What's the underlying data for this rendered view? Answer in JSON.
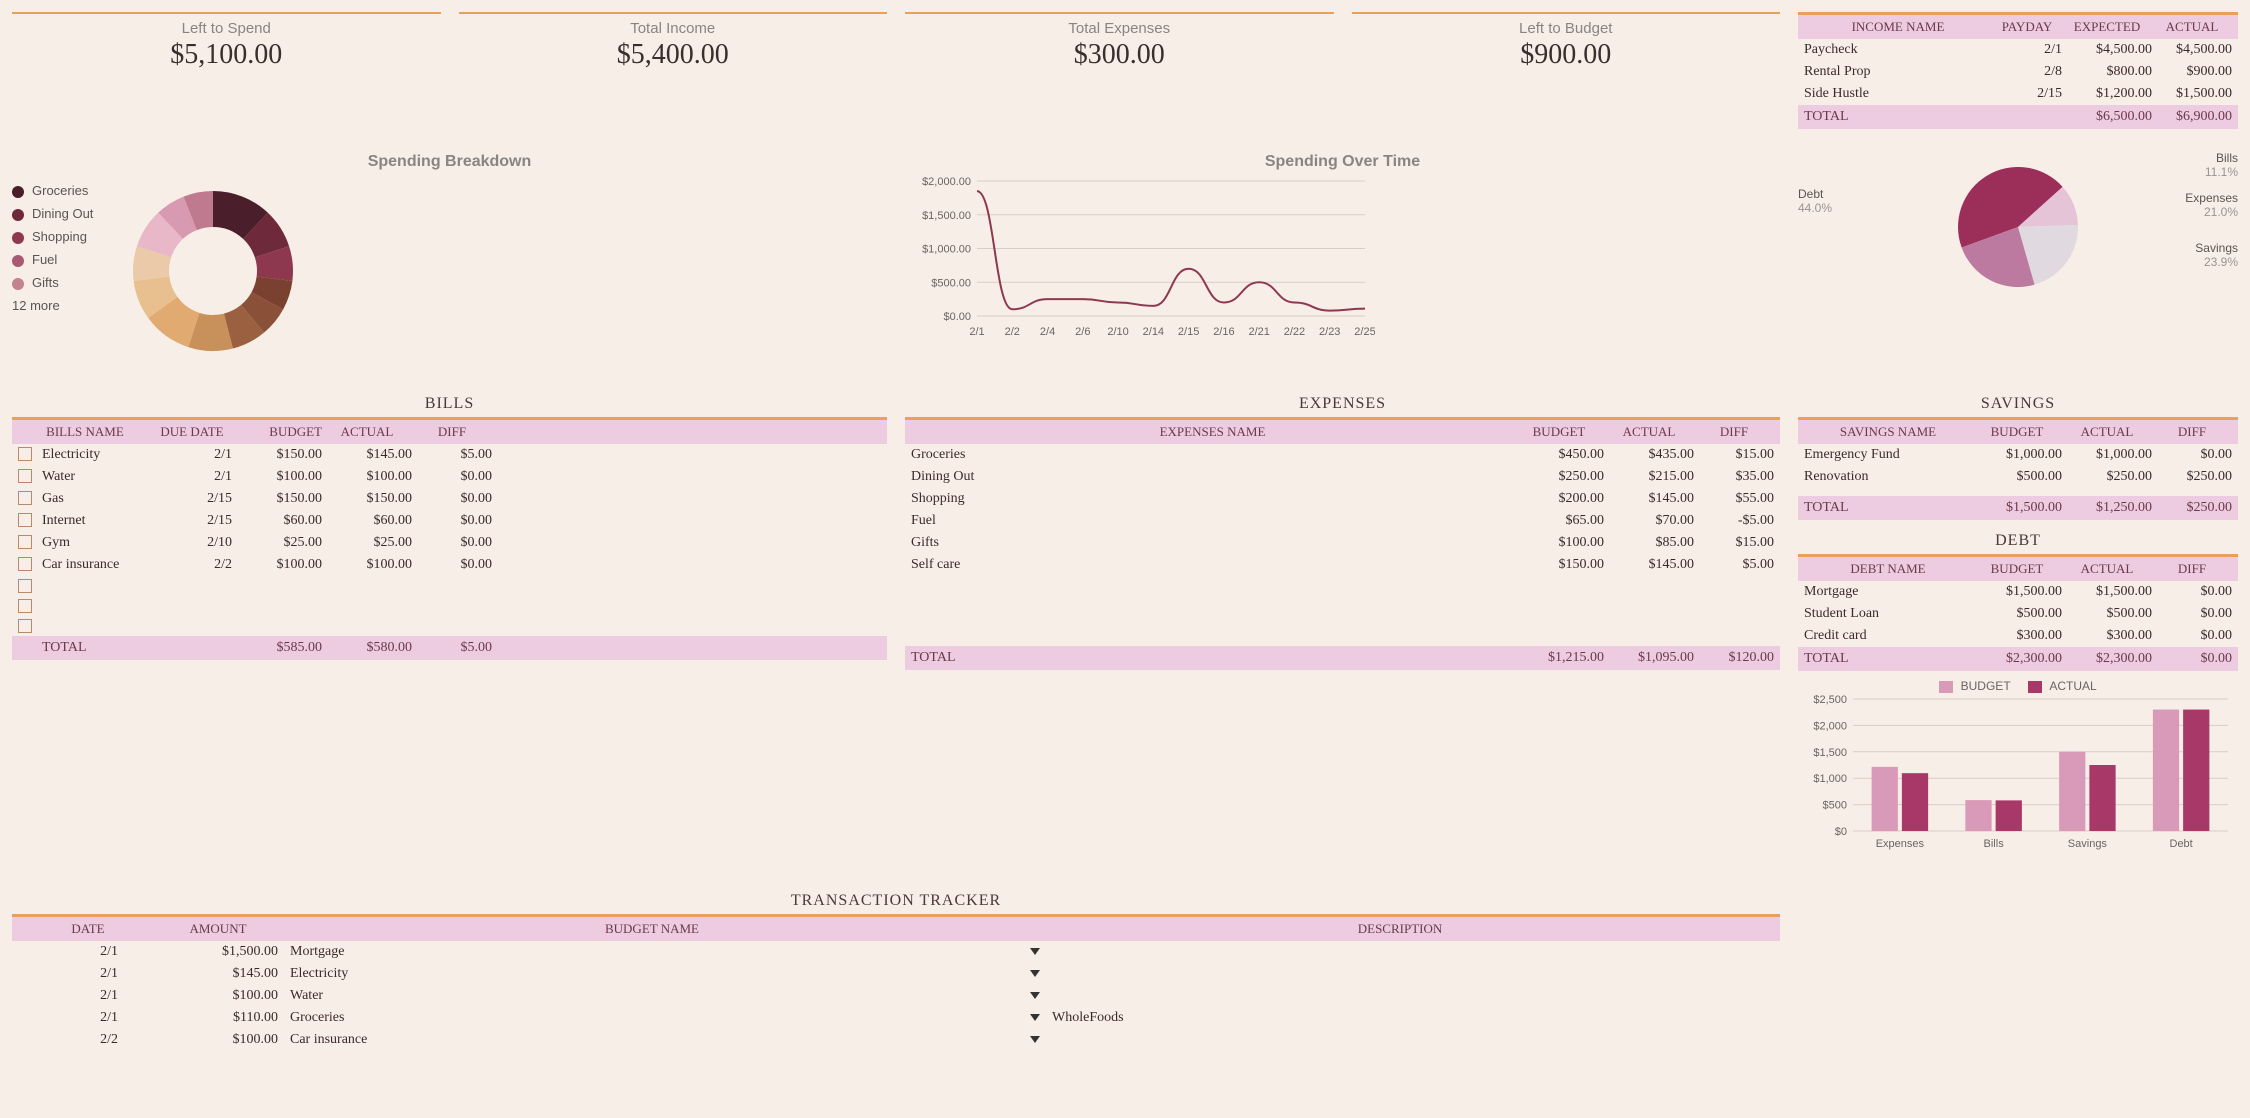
{
  "colors": {
    "bg": "#f8eee8",
    "orange": "#e8a05a",
    "pinkHeader": "#edcbe0",
    "headerText": "#6b3a4a",
    "grey": "#8a8480"
  },
  "summary": [
    {
      "label": "Left to Spend",
      "value": "$5,100.00"
    },
    {
      "label": "Total Income",
      "value": "$5,400.00"
    },
    {
      "label": "Total Expenses",
      "value": "$300.00"
    },
    {
      "label": "Left to Budget",
      "value": "$900.00"
    }
  ],
  "spendingBreakdown": {
    "title": "Spending Breakdown",
    "legend": [
      {
        "label": "Groceries",
        "color": "#4a1e2a"
      },
      {
        "label": "Dining Out",
        "color": "#6e2a3a"
      },
      {
        "label": "Shopping",
        "color": "#8e3850"
      },
      {
        "label": "Fuel",
        "color": "#a85a70"
      },
      {
        "label": "Gifts",
        "color": "#c2828e"
      }
    ],
    "more": "12 more",
    "slices": [
      {
        "color": "#4a1e2a",
        "pct": 12
      },
      {
        "color": "#6e2a3a",
        "pct": 8
      },
      {
        "color": "#8e3850",
        "pct": 7
      },
      {
        "color": "#7a4030",
        "pct": 6
      },
      {
        "color": "#8a5038",
        "pct": 6
      },
      {
        "color": "#9a6040",
        "pct": 7
      },
      {
        "color": "#c8905a",
        "pct": 9
      },
      {
        "color": "#e0aa70",
        "pct": 10
      },
      {
        "color": "#e8c090",
        "pct": 8
      },
      {
        "color": "#eacaa8",
        "pct": 7
      },
      {
        "color": "#e8b8c8",
        "pct": 8
      },
      {
        "color": "#d89ab0",
        "pct": 6
      },
      {
        "color": "#c07a90",
        "pct": 6
      }
    ]
  },
  "spendingOverTime": {
    "title": "Spending Over Time",
    "yticks": [
      "$2,000.00",
      "$1,500.00",
      "$1,000.00",
      "$500.00",
      "$0.00"
    ],
    "ymax": 2000,
    "xlabels": [
      "2/1",
      "2/2",
      "2/4",
      "2/6",
      "2/10",
      "2/14",
      "2/15",
      "2/16",
      "2/21",
      "2/22",
      "2/23",
      "2/25"
    ],
    "points": [
      1850,
      100,
      250,
      250,
      200,
      150,
      700,
      200,
      500,
      200,
      80,
      110
    ],
    "lineColor": "#8e3850",
    "gridColor": "#d8cec6"
  },
  "bills": {
    "title": "BILLS",
    "headers": [
      "BILLS NAME",
      "DUE DATE",
      "BUDGET",
      "ACTUAL",
      "DIFF"
    ],
    "rows": [
      {
        "name": "Electricity",
        "due": "2/1",
        "budget": "$150.00",
        "actual": "$145.00",
        "diff": "$5.00"
      },
      {
        "name": "Water",
        "due": "2/1",
        "budget": "$100.00",
        "actual": "$100.00",
        "diff": "$0.00"
      },
      {
        "name": "Gas",
        "due": "2/15",
        "budget": "$150.00",
        "actual": "$150.00",
        "diff": "$0.00"
      },
      {
        "name": "Internet",
        "due": "2/15",
        "budget": "$60.00",
        "actual": "$60.00",
        "diff": "$0.00"
      },
      {
        "name": "Gym",
        "due": "2/10",
        "budget": "$25.00",
        "actual": "$25.00",
        "diff": "$0.00"
      },
      {
        "name": "Car insurance",
        "due": "2/2",
        "budget": "$100.00",
        "actual": "$100.00",
        "diff": "$0.00"
      },
      {
        "name": "",
        "due": "",
        "budget": "",
        "actual": "",
        "diff": ""
      },
      {
        "name": "",
        "due": "",
        "budget": "",
        "actual": "",
        "diff": ""
      },
      {
        "name": "",
        "due": "",
        "budget": "",
        "actual": "",
        "diff": ""
      }
    ],
    "total": {
      "label": "TOTAL",
      "budget": "$585.00",
      "actual": "$580.00",
      "diff": "$5.00"
    }
  },
  "expenses": {
    "title": "EXPENSES",
    "headers": [
      "EXPENSES NAME",
      "BUDGET",
      "ACTUAL",
      "DIFF"
    ],
    "rows": [
      {
        "name": "Groceries",
        "budget": "$450.00",
        "actual": "$435.00",
        "diff": "$15.00"
      },
      {
        "name": "Dining Out",
        "budget": "$250.00",
        "actual": "$215.00",
        "diff": "$35.00"
      },
      {
        "name": "Shopping",
        "budget": "$200.00",
        "actual": "$145.00",
        "diff": "$55.00"
      },
      {
        "name": "Fuel",
        "budget": "$65.00",
        "actual": "$70.00",
        "diff": "-$5.00"
      },
      {
        "name": "Gifts",
        "budget": "$100.00",
        "actual": "$85.00",
        "diff": "$15.00"
      },
      {
        "name": "Self care",
        "budget": "$150.00",
        "actual": "$145.00",
        "diff": "$5.00"
      }
    ],
    "total": {
      "label": "TOTAL",
      "budget": "$1,215.00",
      "actual": "$1,095.00",
      "diff": "$120.00"
    }
  },
  "income": {
    "headers": [
      "INCOME NAME",
      "PAYDAY",
      "EXPECTED",
      "ACTUAL"
    ],
    "rows": [
      {
        "name": "Paycheck",
        "payday": "2/1",
        "expected": "$4,500.00",
        "actual": "$4,500.00"
      },
      {
        "name": "Rental Prop",
        "payday": "2/8",
        "expected": "$800.00",
        "actual": "$900.00"
      },
      {
        "name": "Side Hustle",
        "payday": "2/15",
        "expected": "$1,200.00",
        "actual": "$1,500.00"
      }
    ],
    "total": {
      "label": "TOTAL",
      "expected": "$6,500.00",
      "actual": "$6,900.00"
    }
  },
  "allocationPie": {
    "slices": [
      {
        "label": "Debt",
        "pct": "44.0%",
        "color": "#9c2f5a",
        "angle": 158
      },
      {
        "label": "Bills",
        "pct": "11.1%",
        "color": "#e4c4d6",
        "angle": 40
      },
      {
        "label": "Expenses",
        "pct": "21.0%",
        "color": "#e0dae0",
        "angle": 76
      },
      {
        "label": "Savings",
        "pct": "23.9%",
        "color": "#bc7aa0",
        "angle": 86
      }
    ]
  },
  "savings": {
    "title": "SAVINGS",
    "headers": [
      "SAVINGS NAME",
      "BUDGET",
      "ACTUAL",
      "DIFF"
    ],
    "rows": [
      {
        "name": "Emergency Fund",
        "budget": "$1,000.00",
        "actual": "$1,000.00",
        "diff": "$0.00"
      },
      {
        "name": "Renovation",
        "budget": "$500.00",
        "actual": "$250.00",
        "diff": "$250.00"
      }
    ],
    "total": {
      "label": "TOTAL",
      "budget": "$1,500.00",
      "actual": "$1,250.00",
      "diff": "$250.00"
    }
  },
  "debt": {
    "title": "DEBT",
    "headers": [
      "DEBT NAME",
      "BUDGET",
      "ACTUAL",
      "DIFF"
    ],
    "rows": [
      {
        "name": "Mortgage",
        "budget": "$1,500.00",
        "actual": "$1,500.00",
        "diff": "$0.00"
      },
      {
        "name": "Student Loan",
        "budget": "$500.00",
        "actual": "$500.00",
        "diff": "$0.00"
      },
      {
        "name": "Credit card",
        "budget": "$300.00",
        "actual": "$300.00",
        "diff": "$0.00"
      }
    ],
    "total": {
      "label": "TOTAL",
      "budget": "$2,300.00",
      "actual": "$2,300.00",
      "diff": "$0.00"
    }
  },
  "barChart": {
    "legend": [
      {
        "label": "BUDGET",
        "color": "#d89ab8"
      },
      {
        "label": "ACTUAL",
        "color": "#a83868"
      }
    ],
    "ymax": 2500,
    "yticks": [
      "$2,500",
      "$2,000",
      "$1,500",
      "$1,000",
      "$500",
      "$0"
    ],
    "groups": [
      {
        "label": "Expenses",
        "budget": 1215,
        "actual": 1095
      },
      {
        "label": "Bills",
        "budget": 585,
        "actual": 580
      },
      {
        "label": "Savings",
        "budget": 1500,
        "actual": 1250
      },
      {
        "label": "Debt",
        "budget": 2300,
        "actual": 2300
      }
    ]
  },
  "transactions": {
    "title": "TRANSACTION TRACKER",
    "headers": [
      "DATE",
      "AMOUNT",
      "BUDGET NAME",
      "DESCRIPTION"
    ],
    "rows": [
      {
        "date": "2/1",
        "amount": "$1,500.00",
        "name": "Mortgage",
        "desc": ""
      },
      {
        "date": "2/1",
        "amount": "$145.00",
        "name": "Electricity",
        "desc": ""
      },
      {
        "date": "2/1",
        "amount": "$100.00",
        "name": "Water",
        "desc": ""
      },
      {
        "date": "2/1",
        "amount": "$110.00",
        "name": "Groceries",
        "desc": "WholeFoods"
      },
      {
        "date": "2/2",
        "amount": "$100.00",
        "name": "Car insurance",
        "desc": ""
      }
    ]
  }
}
